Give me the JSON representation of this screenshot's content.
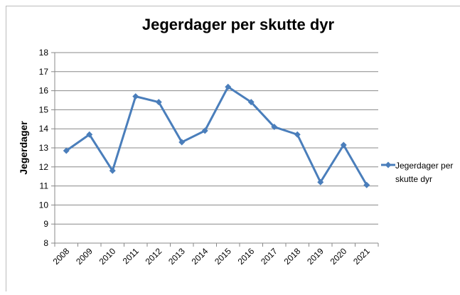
{
  "chart_data": {
    "type": "line",
    "title": "Jegerdager per skutte dyr",
    "y_label": "Jegerdager",
    "categories": [
      "2008",
      "2009",
      "2010",
      "2011",
      "2012",
      "2013",
      "2014",
      "2015",
      "2016",
      "2017",
      "2018",
      "2019",
      "2020",
      "2021"
    ],
    "series": [
      {
        "name": "Jegerdager per skutte dyr",
        "color": "#4a7ebb",
        "values": [
          12.85,
          13.7,
          11.8,
          15.7,
          15.4,
          13.3,
          13.9,
          16.2,
          15.4,
          14.1,
          13.7,
          11.2,
          13.15,
          11.05
        ]
      }
    ],
    "ylim": [
      8,
      18
    ],
    "yticks": [
      8,
      9,
      10,
      11,
      12,
      13,
      14,
      15,
      16,
      17,
      18
    ],
    "grid": true,
    "legend": "right"
  }
}
